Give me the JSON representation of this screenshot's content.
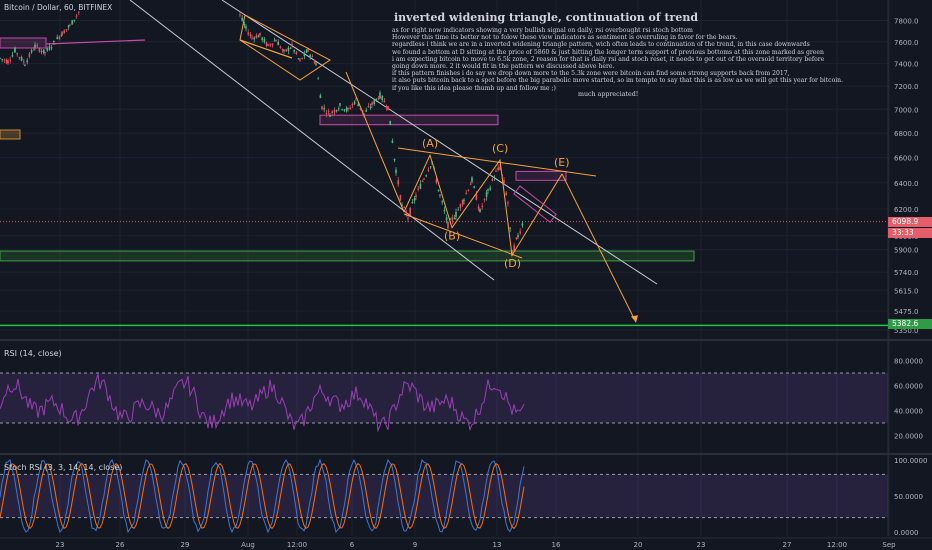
{
  "header": {
    "symbol": "Bitcoin / Dollar, 60, BITFINEX"
  },
  "idea": {
    "title": "inverted widening triangle, continuation of trend",
    "body": [
      "as for right now indicators showing a very bullish signal on daily, rsi overbought rsi stoch bottom",
      "However this time its better not to folow these view indicators as sentiment is overruling in favor for the bears.",
      "regardless i think we are in a inverted widening triangle pattern, wich often leads to continuation of the trend, in this case downwards",
      "we found a bottom at D sitting at the price of 5860 & just hitting the longer term support of previous bottoms at this zone marked as green",
      "i am expecting bitcoin to move to 6.5k zone, 2 reason for that is daily rsi and stoch reset, it needs to get out of the oversold territory before",
      "going down more. 2 it would fit in the pattern we discussed above here.",
      "if this pattern finishes i do say we drop down more to the 5.3k zone were bitcoin can find some strong supports back from 2017,",
      "it also puts bitcoin back to a spot before the big parabolic move started, so im tempte to say that this is as low as we will get this year for bitcoin.",
      "if you like this idea please thumb up and follow me ;)"
    ],
    "thanks": "much appreciated!"
  },
  "pattern_labels": [
    "(A)",
    "(B)",
    "(C)",
    "(D)",
    "(E)"
  ],
  "price_axis": {
    "ticks": [
      "7800.0",
      "7600.0",
      "7400.0",
      "7200.0",
      "7000.0",
      "6800.0",
      "6600.0",
      "6400.0",
      "6200.0",
      "6000.0",
      "5900.0",
      "5740.0",
      "5615.0",
      "5475.0",
      "5350.0"
    ],
    "current_price": "6098.9",
    "countdown": "33:33",
    "green_level": "5382.6"
  },
  "time_axis": {
    "ticks": [
      "23",
      "26",
      "29",
      "Aug",
      "12:00",
      "6",
      "9",
      "13",
      "16",
      "20",
      "23",
      "27",
      "12:00",
      "Sep"
    ]
  },
  "rsi": {
    "title": "RSI (14, close)",
    "ticks": [
      "80.0000",
      "60.0000",
      "40.0000",
      "20.0000"
    ]
  },
  "stoch": {
    "title": "Stoch RSI (3, 3, 14, 14, close)",
    "ticks": [
      "100.0000",
      "50.0000",
      "0.0000"
    ]
  },
  "colors": {
    "background": "#131722",
    "candle_up": "#53b987",
    "candle_down": "#eb4d5c",
    "pattern": "#f6a33a",
    "support_zone": "#3fa142",
    "resistance_zone": "#c24da8",
    "rsi_line": "#9b3fb5",
    "stoch_k": "#3c78d8",
    "stoch_d": "#ff6d00"
  },
  "chart_data": {
    "type": "candlestick",
    "title": "Bitcoin / Dollar, 60, BITFINEX",
    "price_range": [
      5350,
      7900
    ],
    "price_path": [
      [
        0,
        7450
      ],
      [
        8,
        7420
      ],
      [
        15,
        7520
      ],
      [
        25,
        7400
      ],
      [
        35,
        7560
      ],
      [
        45,
        7500
      ],
      [
        55,
        7600
      ],
      [
        62,
        7680
      ],
      [
        70,
        7750
      ],
      [
        80,
        7900
      ],
      [
        240,
        7850
      ],
      [
        246,
        7720
      ],
      [
        252,
        7640
      ],
      [
        260,
        7660
      ],
      [
        268,
        7560
      ],
      [
        276,
        7620
      ],
      [
        284,
        7500
      ],
      [
        292,
        7560
      ],
      [
        300,
        7420
      ],
      [
        308,
        7520
      ],
      [
        316,
        7400
      ],
      [
        322,
        7020
      ],
      [
        330,
        6960
      ],
      [
        340,
        7030
      ],
      [
        348,
        6990
      ],
      [
        356,
        7080
      ],
      [
        364,
        6960
      ],
      [
        372,
        7040
      ],
      [
        380,
        7120
      ],
      [
        388,
        7020
      ],
      [
        396,
        6500
      ],
      [
        402,
        6220
      ],
      [
        408,
        6140
      ],
      [
        416,
        6300
      ],
      [
        424,
        6440
      ],
      [
        432,
        6570
      ],
      [
        440,
        6300
      ],
      [
        448,
        6080
      ],
      [
        456,
        6160
      ],
      [
        464,
        6280
      ],
      [
        472,
        6420
      ],
      [
        480,
        6180
      ],
      [
        488,
        6330
      ],
      [
        496,
        6480
      ],
      [
        500,
        6520
      ],
      [
        504,
        6400
      ],
      [
        508,
        6250
      ],
      [
        512,
        5870
      ],
      [
        518,
        6000
      ],
      [
        524,
        6120
      ]
    ],
    "pattern_points": [
      [
        "(A)",
        430,
        6620
      ],
      [
        "(B)",
        452,
        6060
      ],
      [
        "(C)",
        500,
        6580
      ],
      [
        "(D)",
        512,
        5860
      ],
      [
        "(E)",
        562,
        6470
      ]
    ],
    "support_zone": [
      5820,
      5890
    ],
    "support_line": 5380,
    "resistance_boxes": [
      [
        320,
        498,
        6870,
        6950
      ],
      [
        516,
        566,
        6420,
        6490
      ]
    ],
    "projection": [
      [
        562,
        6470
      ],
      [
        636,
        5400
      ]
    ],
    "rsi_levels": [
      70,
      30
    ],
    "rsi_range": [
      10,
      90
    ],
    "stoch_range": [
      0,
      100
    ],
    "stoch_band": [
      20,
      80
    ]
  }
}
